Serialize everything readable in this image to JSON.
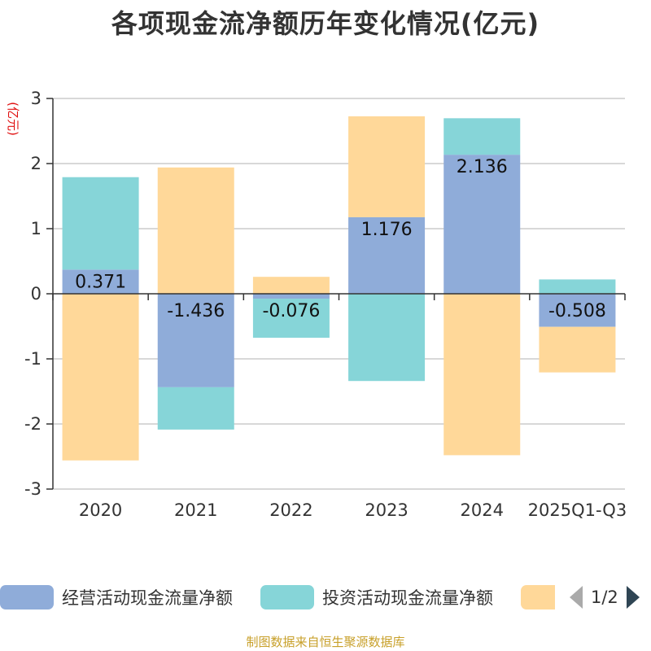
{
  "chart_data": {
    "type": "bar",
    "stacked": true,
    "title": "各项现金流净额历年变化情况(亿元)",
    "ylabel": "(亿元)",
    "categories": [
      "2020",
      "2021",
      "2022",
      "2023",
      "2024",
      "2025Q1-Q3"
    ],
    "ylim": [
      -3,
      3
    ],
    "yticks": [
      3,
      2,
      1,
      0,
      -1,
      -2,
      -3
    ],
    "grid": true,
    "legend_position": "bottom",
    "series": [
      {
        "name": "经营活动现金流量净额",
        "color": "#8facd9",
        "values": [
          0.371,
          -1.436,
          -0.076,
          1.176,
          2.136,
          -0.508
        ],
        "labels": [
          "0.371",
          "-1.436",
          "-0.076",
          "1.176",
          "2.136",
          "-0.508"
        ]
      },
      {
        "name": "投资活动现金流量净额",
        "color": "#86d5d8",
        "values": [
          1.42,
          -0.65,
          -0.6,
          -1.34,
          0.56,
          0.22
        ]
      },
      {
        "name": "",
        "color": "#ffd899",
        "values": [
          -2.56,
          1.94,
          0.26,
          1.55,
          -2.48,
          -0.7
        ]
      }
    ]
  },
  "legend": {
    "page": "1/2"
  },
  "footer": "制图数据来自恒生聚源数据库"
}
